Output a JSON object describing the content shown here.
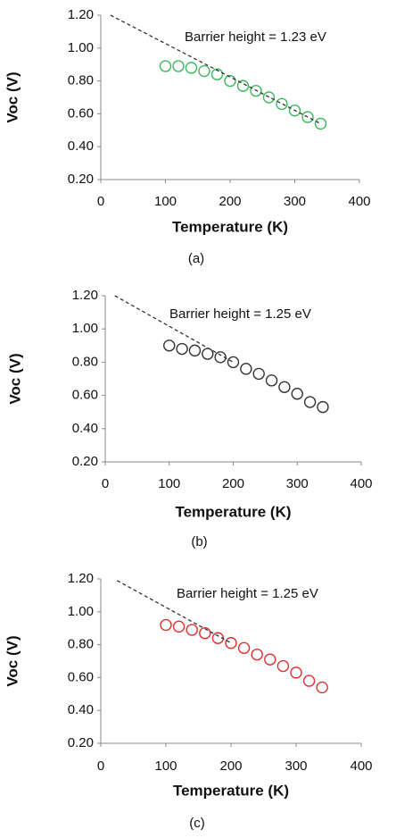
{
  "chart_data": [
    {
      "type": "scatter",
      "xlabel": "Temperature (K)",
      "ylabel": "Voc (V)",
      "annotation": "Barrier height = 1.23 eV",
      "caption": "(a)",
      "xlim": [
        0,
        400
      ],
      "xticks": [
        0,
        100,
        200,
        300,
        400
      ],
      "ylim": [
        0.2,
        1.2
      ],
      "yticks": [
        {
          "value": 0.2,
          "label": "0.20"
        },
        {
          "value": 0.4,
          "label": "0.40"
        },
        {
          "value": 0.6,
          "label": "0.60"
        },
        {
          "value": 0.8,
          "label": "0.80"
        },
        {
          "value": 1.0,
          "label": "1.00"
        },
        {
          "value": 1.2,
          "label": "1.20"
        }
      ],
      "x": [
        100,
        120,
        140,
        160,
        180,
        200,
        220,
        240,
        260,
        280,
        300,
        320,
        340
      ],
      "series": [
        {
          "color": "#3cb860",
          "values": [
            0.89,
            0.89,
            0.88,
            0.86,
            0.84,
            0.8,
            0.77,
            0.74,
            0.7,
            0.66,
            0.62,
            0.58,
            0.54
          ]
        },
        {
          "color": "#333333",
          "dashed": true,
          "x": [
            15,
            340
          ],
          "values": [
            1.2,
            0.54
          ]
        }
      ]
    },
    {
      "type": "scatter",
      "xlabel": "Temperature (K)",
      "ylabel": "Voc (V)",
      "annotation": "Barrier height = 1.25 eV",
      "caption": "(b)",
      "xlim": [
        0,
        400
      ],
      "xticks": [
        0,
        100,
        200,
        300,
        400
      ],
      "ylim": [
        0.2,
        1.2
      ],
      "yticks": [
        {
          "value": 0.2,
          "label": "0.20"
        },
        {
          "value": 0.4,
          "label": "0.40"
        },
        {
          "value": 0.6,
          "label": "0.60"
        },
        {
          "value": 0.8,
          "label": "0.80"
        },
        {
          "value": 1.0,
          "label": "1.00"
        },
        {
          "value": 1.2,
          "label": "1.20"
        }
      ],
      "x": [
        100,
        120,
        140,
        160,
        180,
        200,
        220,
        240,
        260,
        280,
        300,
        320,
        340
      ],
      "series": [
        {
          "color": "#333333",
          "values": [
            0.9,
            0.88,
            0.87,
            0.85,
            0.83,
            0.8,
            0.76,
            0.73,
            0.69,
            0.65,
            0.61,
            0.56,
            0.53
          ]
        },
        {
          "color": "#333333",
          "dashed": true,
          "x": [
            15,
            200
          ],
          "values": [
            1.2,
            0.8
          ]
        }
      ]
    },
    {
      "type": "scatter",
      "xlabel": "Temperature (K)",
      "ylabel": "Voc (V)",
      "annotation": "Barrier height = 1.25 eV",
      "caption": "(c)",
      "xlim": [
        0,
        400
      ],
      "xticks": [
        0,
        100,
        200,
        300,
        400
      ],
      "ylim": [
        0.2,
        1.2
      ],
      "yticks": [
        {
          "value": 0.2,
          "label": "0.20"
        },
        {
          "value": 0.4,
          "label": "0.40"
        },
        {
          "value": 0.6,
          "label": "0.60"
        },
        {
          "value": 0.8,
          "label": "0.80"
        },
        {
          "value": 1.0,
          "label": "1.00"
        },
        {
          "value": 1.2,
          "label": "1.20"
        }
      ],
      "x": [
        100,
        120,
        140,
        160,
        180,
        200,
        220,
        240,
        260,
        280,
        300,
        320,
        340
      ],
      "series": [
        {
          "color": "#e03030",
          "values": [
            0.92,
            0.91,
            0.89,
            0.87,
            0.84,
            0.81,
            0.78,
            0.74,
            0.71,
            0.67,
            0.63,
            0.58,
            0.54
          ]
        },
        {
          "color": "#333333",
          "dashed": true,
          "x": [
            25,
            200
          ],
          "values": [
            1.19,
            0.81
          ]
        }
      ]
    }
  ]
}
